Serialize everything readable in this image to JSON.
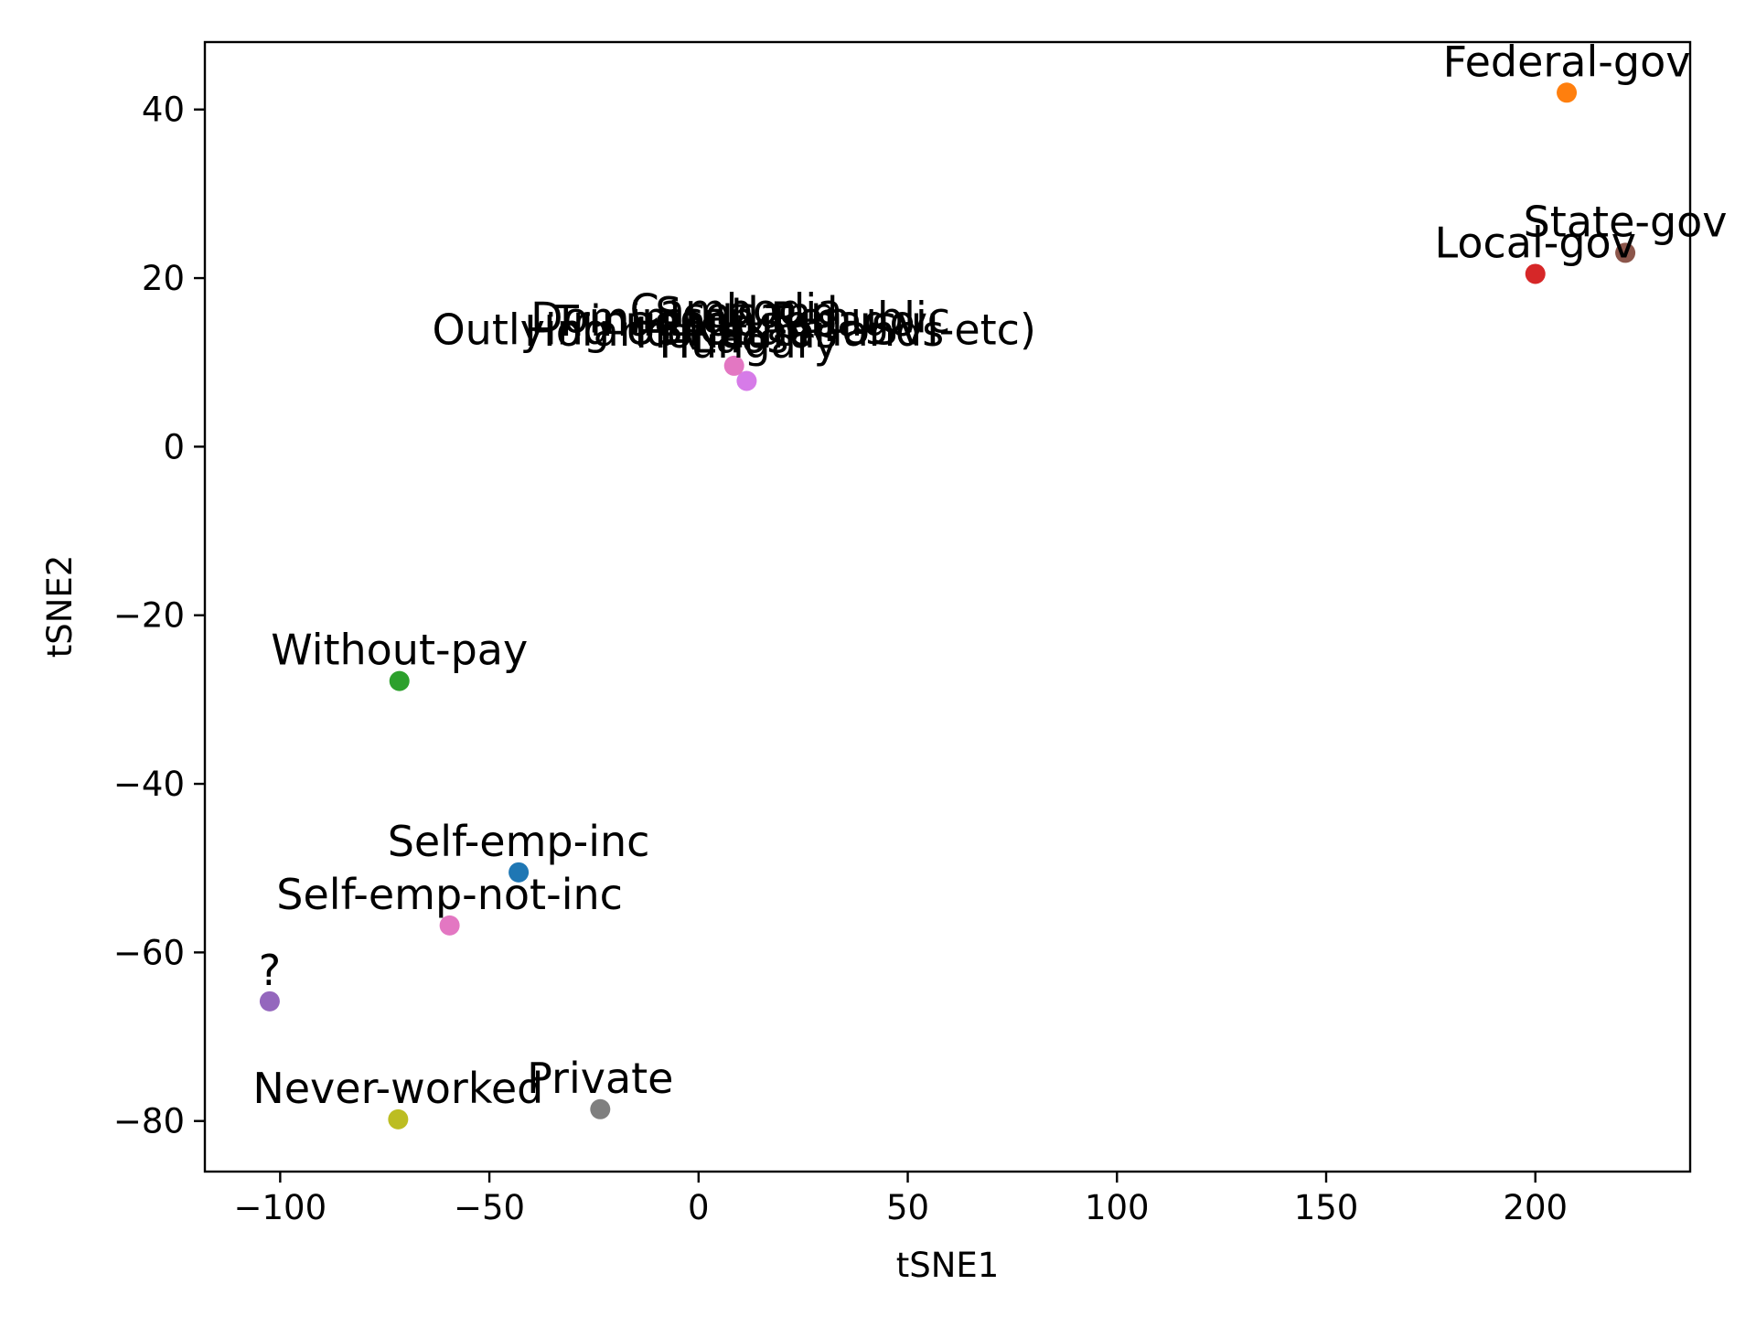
{
  "chart_data": {
    "type": "scatter",
    "title": "",
    "xlabel": "tSNE1",
    "ylabel": "tSNE2",
    "xlim": [
      -118,
      237
    ],
    "ylim": [
      -86,
      48
    ],
    "xticks": [
      -100,
      -50,
      0,
      50,
      100,
      150,
      200
    ],
    "yticks": [
      -80,
      -60,
      -40,
      -20,
      0,
      20,
      40
    ],
    "xtick_labels": [
      "−100",
      "−50",
      "0",
      "50",
      "100",
      "150",
      "200"
    ],
    "ytick_labels": [
      "−80",
      "−60",
      "−40",
      "−20",
      "0",
      "20",
      "40"
    ],
    "grid": false,
    "legend": "none",
    "points": [
      {
        "label": "Federal-gov",
        "x": 207.5,
        "y": 42.0,
        "color": "#ff7f0e"
      },
      {
        "label": "State-gov",
        "x": 221.5,
        "y": 23.0,
        "color": "#8c564b"
      },
      {
        "label": "Local-gov",
        "x": 200.0,
        "y": 20.5,
        "color": "#d62728"
      },
      {
        "label": "Without-pay",
        "x": -71.5,
        "y": -27.8,
        "color": "#2ca02c"
      },
      {
        "label": "Self-emp-inc",
        "x": -43.0,
        "y": -50.5,
        "color": "#1f77b4"
      },
      {
        "label": "Self-emp-not-inc",
        "x": -59.5,
        "y": -56.8,
        "color": "#e377c2"
      },
      {
        "label": "?",
        "x": -102.5,
        "y": -65.8,
        "color": "#9467bd"
      },
      {
        "label": "Never-worked",
        "x": -71.8,
        "y": -79.8,
        "color": "#bcbd22"
      },
      {
        "label": "Private",
        "x": -23.5,
        "y": -78.6,
        "color": "#7f7f7f"
      },
      {
        "label": "",
        "x": 11.5,
        "y": 7.8,
        "color": "#d67be8"
      },
      {
        "label": "",
        "x": 8.5,
        "y": 9.6,
        "color": "#e377c2"
      }
    ],
    "overlapping_labels": [
      {
        "label": "Outlying-US(Guam-USVI-etc)",
        "x": 8.5,
        "y": 10.2
      },
      {
        "label": "Holand-Netherlands",
        "x": 8.5,
        "y": 10.0
      },
      {
        "label": "Trinadad&Tobago",
        "x": 8.5,
        "y": 11.2
      },
      {
        "label": "Dominican-Republic",
        "x": 10.0,
        "y": 11.6
      },
      {
        "label": "Honduras",
        "x": 9.0,
        "y": 9.8
      },
      {
        "label": "Cambodia",
        "x": 9.0,
        "y": 12.6
      },
      {
        "label": "Scotland",
        "x": 11.5,
        "y": 12.2
      },
      {
        "label": "Laos",
        "x": 10.0,
        "y": 9.2
      },
      {
        "label": "Hungary",
        "x": 12.0,
        "y": 8.6
      }
    ]
  }
}
